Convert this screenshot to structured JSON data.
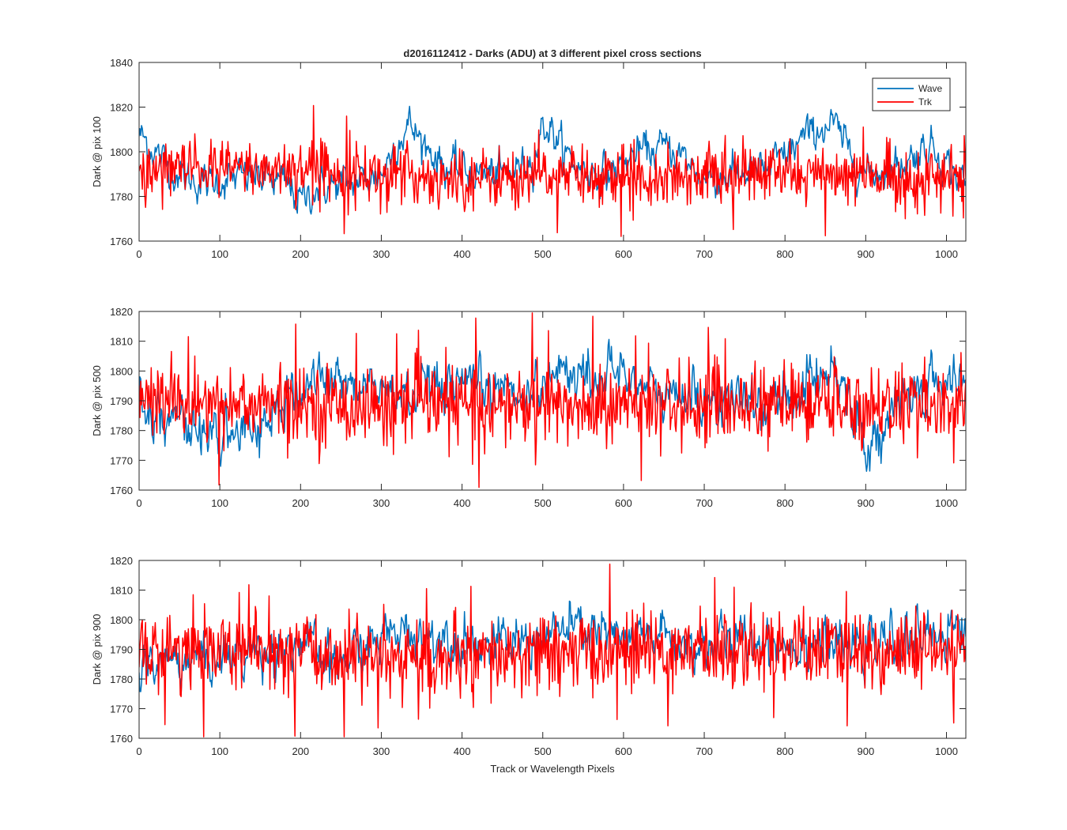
{
  "figure": {
    "title": "d2016112412 - Darks (ADU) at 3 different pixel cross sections",
    "xlabel": "Track or Wavelength Pixels",
    "legend": [
      "Wave",
      "Trk"
    ],
    "colors": {
      "Wave": "#0072BD",
      "Trk": "#FF0000"
    }
  },
  "chart_data": [
    {
      "type": "line",
      "ylabel": "Dark @ pix 100",
      "xlim": [
        0,
        1024
      ],
      "ylim": [
        1760,
        1840
      ],
      "xticks": [
        0,
        100,
        200,
        300,
        400,
        500,
        600,
        700,
        800,
        900,
        1000
      ],
      "yticks": [
        1760,
        1780,
        1800,
        1820,
        1840
      ],
      "grid": false,
      "legend_position": "top-right",
      "series": [
        {
          "name": "Wave",
          "color": "#0072BD",
          "x": [
            0,
            20,
            40,
            60,
            80,
            100,
            140,
            180,
            200,
            220,
            260,
            300,
            320,
            335,
            350,
            380,
            420,
            460,
            490,
            500,
            510,
            520,
            540,
            580,
            620,
            660,
            700,
            740,
            780,
            820,
            840,
            860,
            880,
            900,
            940,
            980,
            1000,
            1024
          ],
          "y": [
            1808,
            1800,
            1792,
            1788,
            1786,
            1787,
            1789,
            1786,
            1778,
            1784,
            1786,
            1790,
            1805,
            1812,
            1805,
            1793,
            1790,
            1790,
            1798,
            1812,
            1810,
            1804,
            1793,
            1790,
            1800,
            1802,
            1788,
            1790,
            1792,
            1805,
            1810,
            1812,
            1800,
            1790,
            1794,
            1803,
            1795,
            1785
          ]
        },
        {
          "name": "Trk",
          "color": "#FF0000",
          "x": [
            0,
            100,
            200,
            300,
            400,
            500,
            600,
            700,
            800,
            900,
            1024
          ],
          "y": [
            1791,
            1792,
            1793,
            1790,
            1788,
            1789,
            1789,
            1790,
            1790,
            1789,
            1788
          ]
        }
      ]
    },
    {
      "type": "line",
      "ylabel": "Dark @ pix 500",
      "xlim": [
        0,
        1024
      ],
      "ylim": [
        1760,
        1820
      ],
      "xticks": [
        0,
        100,
        200,
        300,
        400,
        500,
        600,
        700,
        800,
        900,
        1000
      ],
      "yticks": [
        1760,
        1770,
        1780,
        1790,
        1800,
        1810,
        1820
      ],
      "grid": false,
      "series": [
        {
          "name": "Wave",
          "color": "#0072BD",
          "x": [
            0,
            30,
            60,
            90,
            120,
            150,
            180,
            220,
            240,
            280,
            320,
            360,
            400,
            440,
            480,
            520,
            560,
            600,
            640,
            680,
            720,
            760,
            800,
            840,
            860,
            880,
            900,
            920,
            960,
            1000,
            1024
          ],
          "y": [
            1790,
            1785,
            1782,
            1778,
            1777,
            1783,
            1788,
            1798,
            1797,
            1795,
            1792,
            1792,
            1793,
            1795,
            1792,
            1801,
            1797,
            1801,
            1791,
            1792,
            1790,
            1788,
            1790,
            1798,
            1802,
            1792,
            1775,
            1780,
            1792,
            1797,
            1795
          ]
        },
        {
          "name": "Trk",
          "color": "#FF0000",
          "x": [
            0,
            100,
            200,
            300,
            400,
            500,
            600,
            700,
            800,
            900,
            1024
          ],
          "y": [
            1790,
            1789,
            1789,
            1788,
            1789,
            1788,
            1788,
            1789,
            1789,
            1789,
            1788
          ]
        }
      ]
    },
    {
      "type": "line",
      "ylabel": "Dark @ pix 900",
      "xlim": [
        0,
        1024
      ],
      "ylim": [
        1760,
        1820
      ],
      "xticks": [
        0,
        100,
        200,
        300,
        400,
        500,
        600,
        700,
        800,
        900,
        1000
      ],
      "yticks": [
        1760,
        1770,
        1780,
        1790,
        1800,
        1810,
        1820
      ],
      "grid": false,
      "series": [
        {
          "name": "Wave",
          "color": "#0072BD",
          "x": [
            0,
            40,
            80,
            120,
            160,
            200,
            240,
            280,
            320,
            360,
            400,
            440,
            480,
            520,
            560,
            600,
            640,
            680,
            720,
            760,
            800,
            840,
            880,
            920,
            960,
            1000,
            1024
          ],
          "y": [
            1783,
            1786,
            1787,
            1788,
            1790,
            1793,
            1784,
            1791,
            1796,
            1795,
            1794,
            1791,
            1793,
            1796,
            1797,
            1792,
            1795,
            1791,
            1792,
            1793,
            1792,
            1793,
            1790,
            1792,
            1793,
            1797,
            1798
          ]
        },
        {
          "name": "Trk",
          "color": "#FF0000",
          "x": [
            0,
            100,
            200,
            300,
            400,
            500,
            600,
            700,
            800,
            900,
            1024
          ],
          "y": [
            1790,
            1790,
            1789,
            1787,
            1786,
            1788,
            1789,
            1790,
            1790,
            1789,
            1789
          ]
        }
      ]
    }
  ]
}
